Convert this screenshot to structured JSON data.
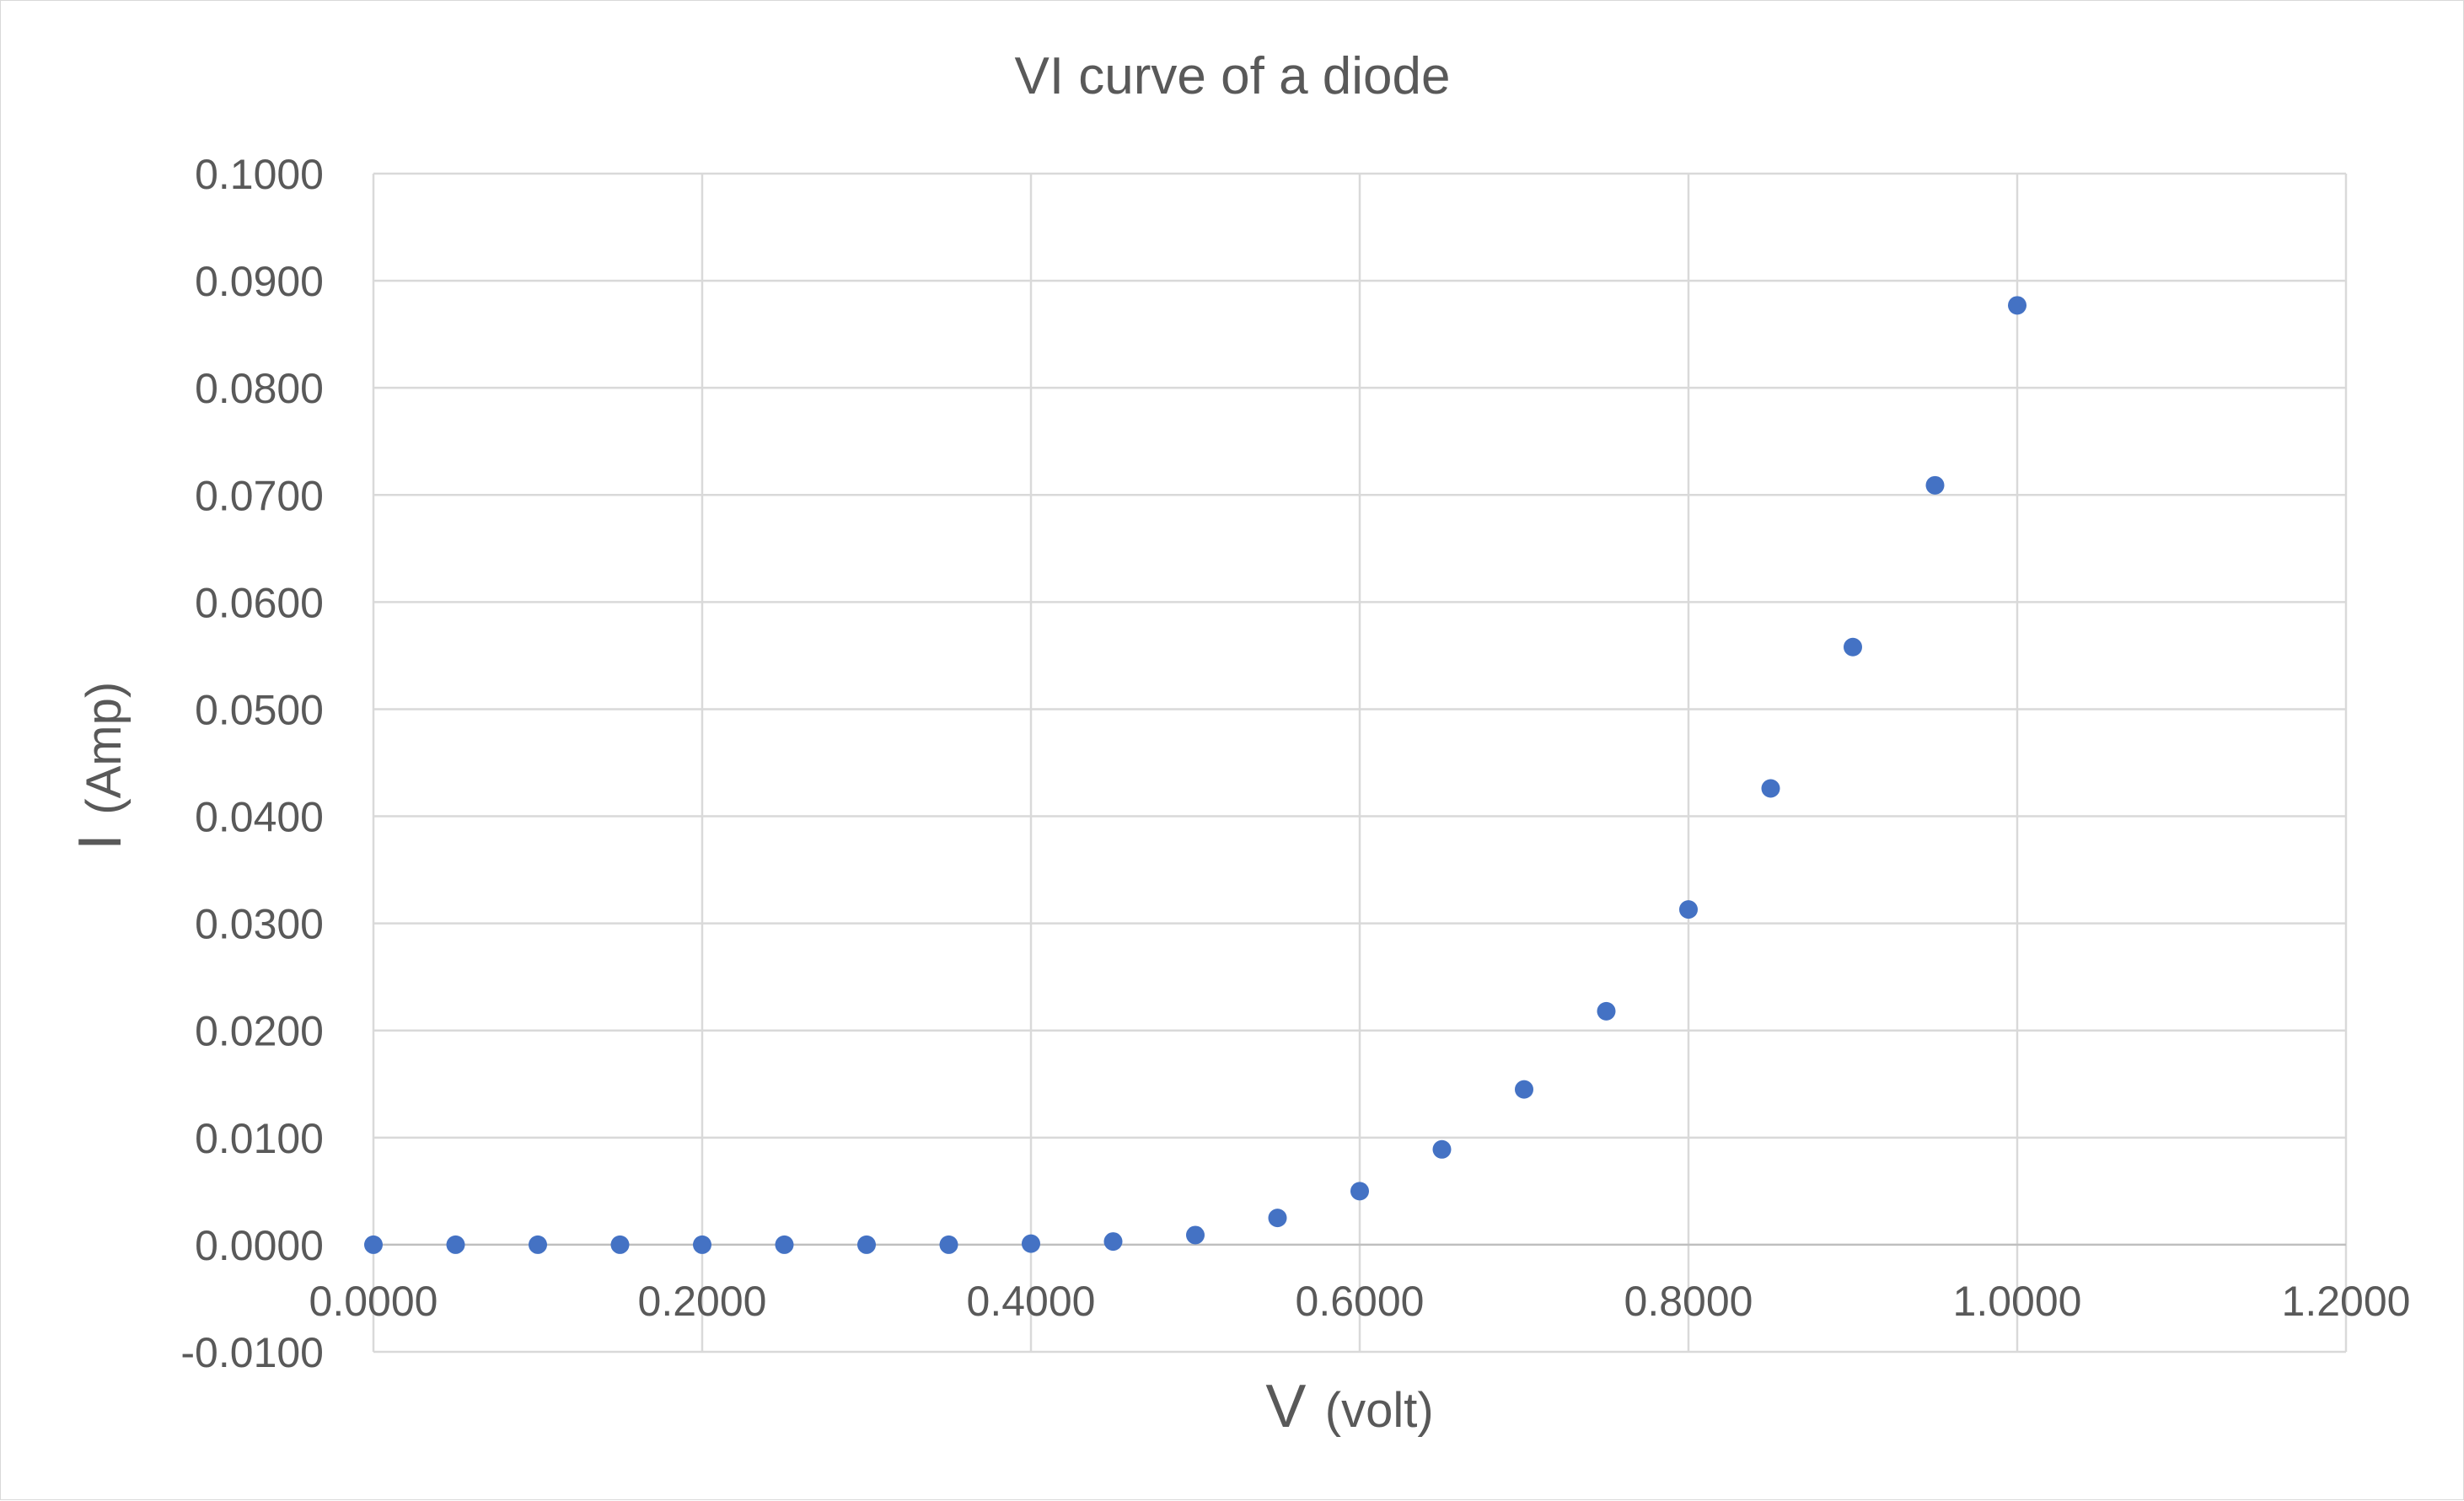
{
  "chart_data": {
    "type": "scatter",
    "title": "VI curve of a diode",
    "xlabel": {
      "main": "V",
      "unit": "(volt)"
    },
    "ylabel": {
      "main": "I",
      "unit": "(Amp)"
    },
    "xlim": [
      0,
      1.2
    ],
    "ylim": [
      -0.01,
      0.1
    ],
    "x_ticks": [
      0,
      0.2,
      0.4,
      0.6,
      0.8,
      1.0,
      1.2
    ],
    "x_tick_labels": [
      "0.0000",
      "0.2000",
      "0.4000",
      "0.6000",
      "0.8000",
      "1.0000",
      "1.2000"
    ],
    "y_ticks": [
      -0.01,
      0,
      0.01,
      0.02,
      0.03,
      0.04,
      0.05,
      0.06,
      0.07,
      0.08,
      0.09,
      0.1
    ],
    "y_tick_labels": [
      "-0.0100",
      "0.0000",
      "0.0100",
      "0.0200",
      "0.0300",
      "0.0400",
      "0.0500",
      "0.0600",
      "0.0700",
      "0.0800",
      "0.0900",
      "0.1000"
    ],
    "grid": true,
    "legend": "none",
    "series": [
      {
        "color": "#4472c4",
        "x": [
          0,
          0.05,
          0.1,
          0.15,
          0.2,
          0.25,
          0.3,
          0.35,
          0.4,
          0.45,
          0.5,
          0.55,
          0.6,
          0.65,
          0.7,
          0.75,
          0.8,
          0.85,
          0.9,
          0.95,
          1.0
        ],
        "y": [
          0,
          0,
          0,
          0,
          0,
          0,
          0,
          0,
          0.0001,
          0.0003,
          0.0009,
          0.0025,
          0.005,
          0.0089,
          0.0145,
          0.0218,
          0.0313,
          0.0426,
          0.0558,
          0.0709,
          0.0877
        ]
      }
    ]
  }
}
